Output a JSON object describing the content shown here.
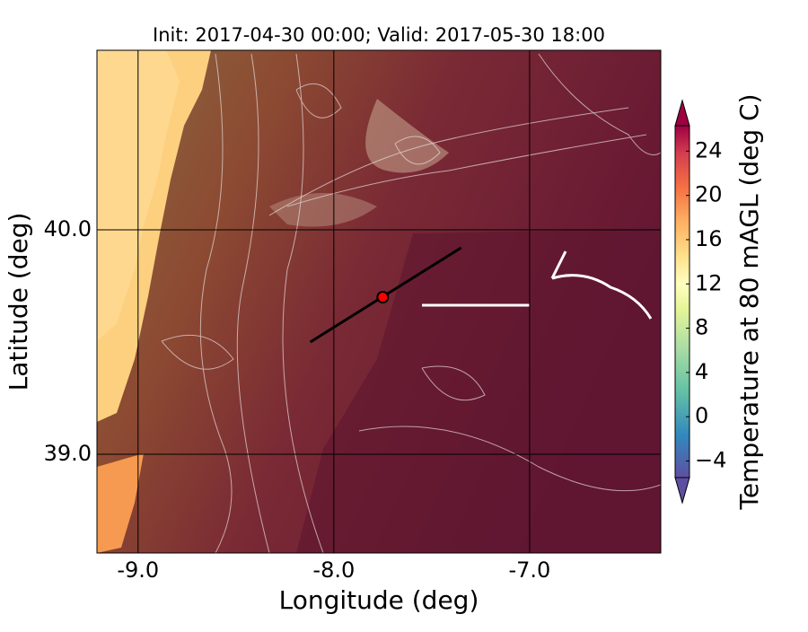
{
  "chart_data": {
    "type": "map",
    "title": "Init: 2017-04-30 00:00; Valid: 2017-05-30 18:00",
    "x_label": "Longitude (deg)",
    "y_label": "Latitude (deg)",
    "xlim": [
      -9.21,
      -6.33
    ],
    "ylim": [
      38.56,
      40.8
    ],
    "xticks": [
      {
        "value": -9,
        "label": "-9.0"
      },
      {
        "value": -8,
        "label": "-8.0"
      },
      {
        "value": -7,
        "label": "-7.0"
      }
    ],
    "yticks": [
      {
        "value": 39,
        "label": "39.0"
      },
      {
        "value": 40,
        "label": "40.0"
      }
    ],
    "grid": true,
    "transect": {
      "x": [
        -8.12,
        -7.35
      ],
      "y": [
        39.5,
        39.92
      ],
      "color": "#000000"
    },
    "point": {
      "x": -7.75,
      "y": 39.7,
      "color": "#ff0000"
    },
    "colorbar": {
      "label": "Temperature at 80 mAGL (deg C)",
      "lim": [
        -5.5,
        26.3
      ],
      "ticks": [
        {
          "value": -4,
          "label": "−4"
        },
        0,
        4,
        8,
        12,
        16,
        20,
        24
      ]
    }
  }
}
